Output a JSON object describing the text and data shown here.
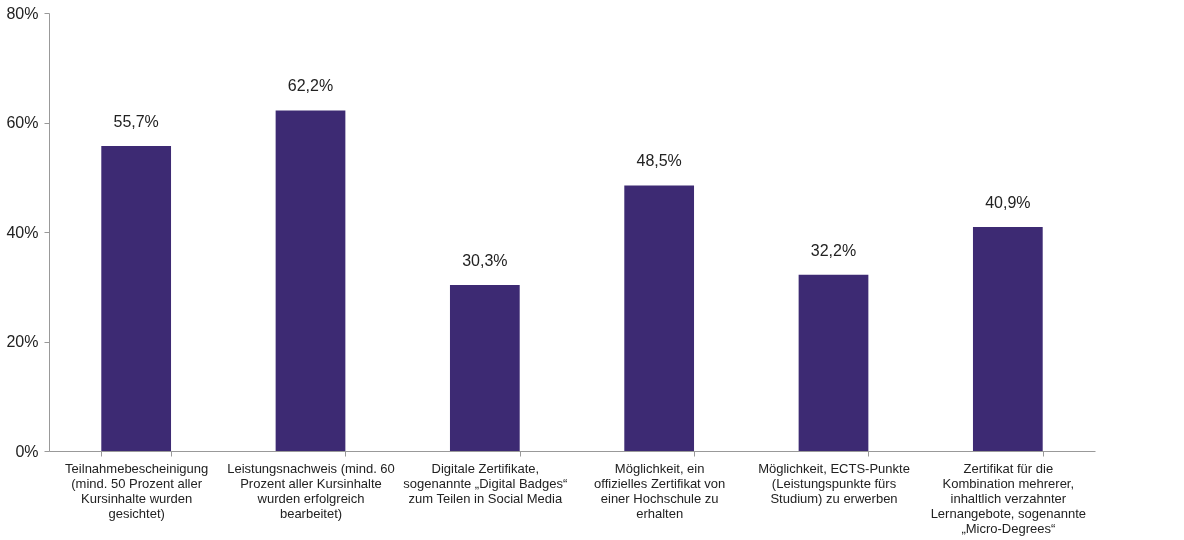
{
  "chart_data": {
    "type": "bar",
    "categories": [
      "Teilnahmebescheinigung (mind. 50 Prozent aller Kursinhalte wurden gesichtet)",
      "Leistungsnachweis (mind. 60 Prozent aller Kursinhalte wurden erfolgreich bearbeitet)",
      "Digitale Zertifikate, sogenannte „Digital Badges“ zum Teilen in Social Media",
      "Möglichkeit, ein offizielles Zertifikat von einer Hochschule zu erhalten",
      "Möglichkeit, ECTS-Punkte (Leistungspunkte fürs Studium) zu erwerben",
      "Zertifikat für die Kombination mehrerer, inhaltlich verzahnter Lernangebote, sogenannte „Micro-Degrees“"
    ],
    "values": [
      55.7,
      62.2,
      30.3,
      48.5,
      32.2,
      40.9
    ],
    "value_labels": [
      "55,7%",
      "62,2%",
      "30,3%",
      "48,5%",
      "32,2%",
      "40,9%"
    ],
    "color": "#3d2a73",
    "ylim": [
      0,
      80
    ],
    "yticks": [
      {
        "value": 0,
        "label": "0%"
      },
      {
        "value": 20,
        "label": "20%"
      },
      {
        "value": 40,
        "label": "40%"
      },
      {
        "value": 60,
        "label": "60%"
      },
      {
        "value": 80,
        "label": "80%"
      }
    ],
    "grid": false
  }
}
